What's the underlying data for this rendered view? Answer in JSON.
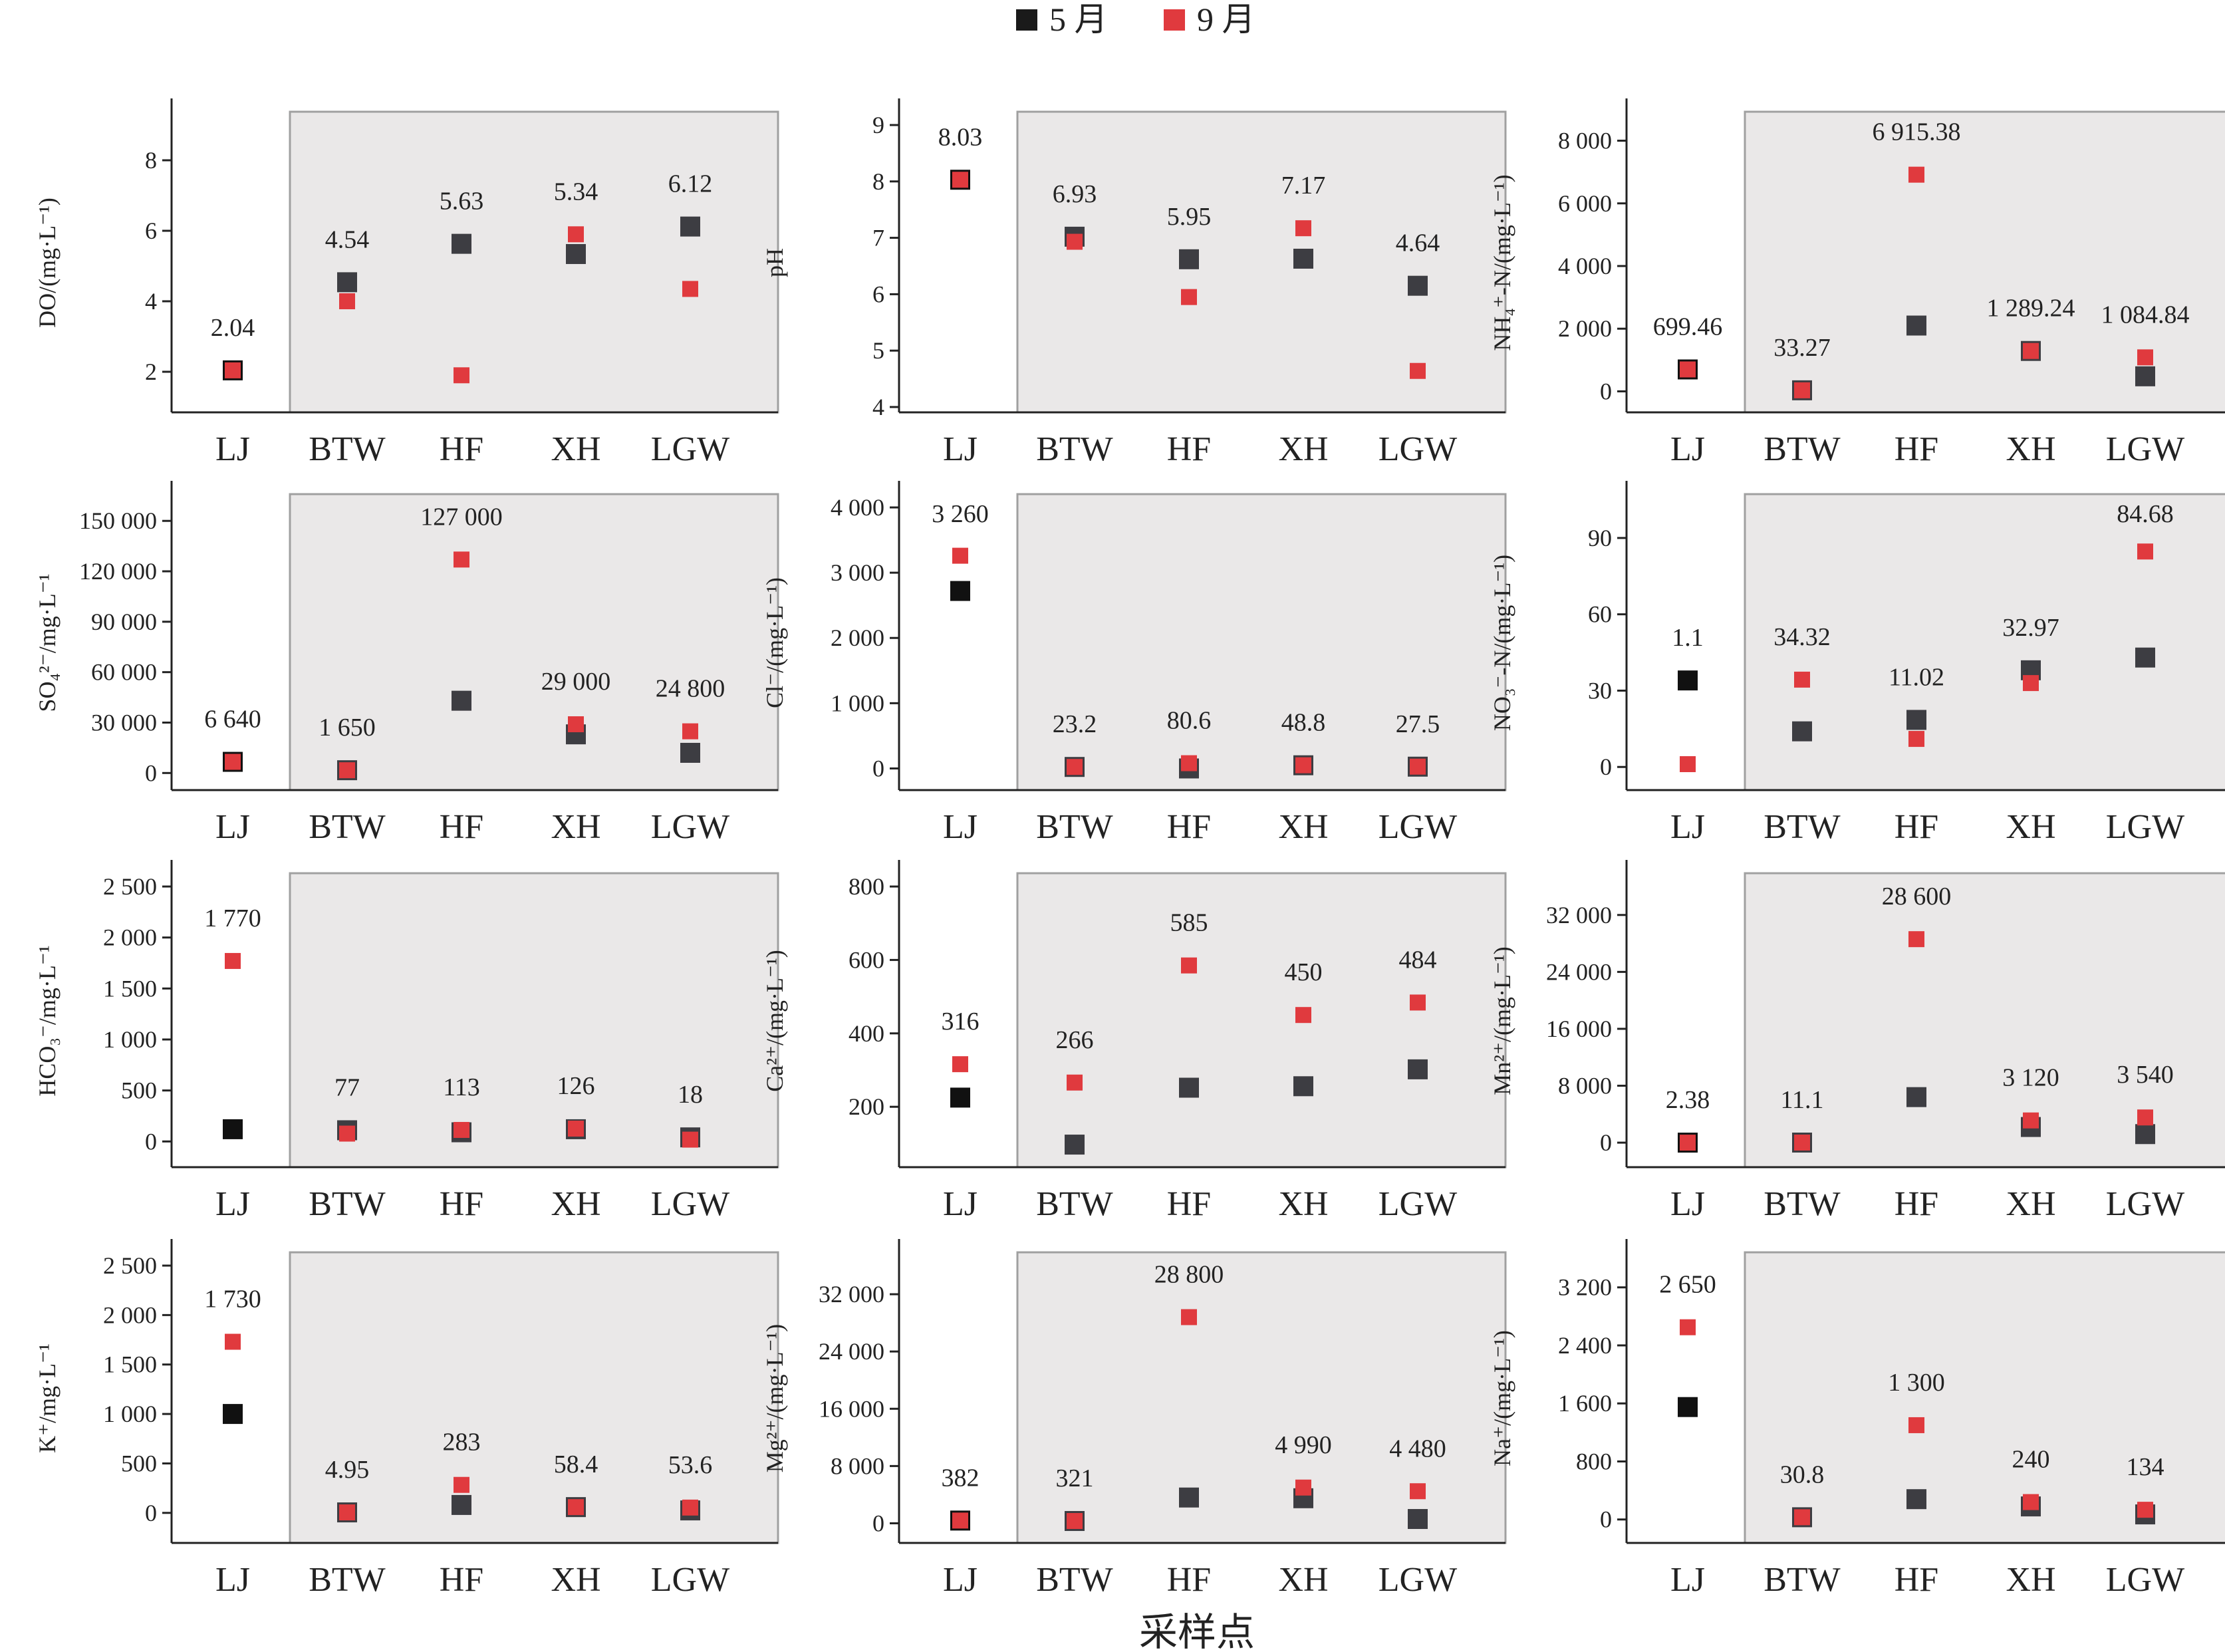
{
  "legend": {
    "position": "top-center",
    "items": [
      {
        "label": "5 月",
        "color": "#1a1a1a"
      },
      {
        "label": "9 月",
        "color": "#e03a3e"
      }
    ]
  },
  "shared_xlabel": "采样点",
  "colors": {
    "may_landfill": "#111111",
    "may_other": "#3d3d42",
    "sep": "#e03a3e",
    "shade": "#eae8e8",
    "shade_border": "#a0a0a0"
  },
  "chart_data": [
    {
      "id": "do",
      "type": "scatter",
      "ylabel": "DO/(mg·L⁻¹)",
      "categories": [
        "LJ",
        "BTW",
        "HF",
        "XH",
        "LGW"
      ],
      "ylim": [
        1,
        9
      ],
      "yticks": [
        2,
        4,
        6,
        8
      ],
      "ytick_labels": [
        "2",
        "4",
        "6",
        "8"
      ],
      "series": [
        {
          "name": "5 月",
          "values": [
            2.04,
            4.54,
            5.63,
            5.34,
            6.12
          ]
        },
        {
          "name": "9 月",
          "values": [
            2.04,
            4.0,
            1.9,
            5.9,
            4.35
          ]
        }
      ],
      "labels": [
        "2.04",
        "4.54",
        "5.63",
        "5.34",
        "6.12"
      ]
    },
    {
      "id": "ph",
      "type": "scatter",
      "ylabel": "pH",
      "categories": [
        "LJ",
        "BTW",
        "HF",
        "XH",
        "LGW"
      ],
      "ylim": [
        4,
        9
      ],
      "yticks": [
        4,
        5,
        6,
        7,
        8,
        9
      ],
      "ytick_labels": [
        "4",
        "5",
        "6",
        "7",
        "8",
        "9"
      ],
      "series": [
        {
          "name": "5 月",
          "values": [
            8.03,
            7.02,
            6.62,
            6.63,
            6.15
          ]
        },
        {
          "name": "9 月",
          "values": [
            8.03,
            6.93,
            5.95,
            7.17,
            4.64
          ]
        }
      ],
      "labels": [
        "8.03",
        "6.93",
        "5.95",
        "7.17",
        "4.64"
      ]
    },
    {
      "id": "nh4",
      "type": "scatter",
      "ylabel": "NH₄⁺-N/(mg·L⁻¹)",
      "categories": [
        "LJ",
        "BTW",
        "HF",
        "XH",
        "LGW"
      ],
      "ylim": [
        -500,
        8500
      ],
      "yticks": [
        0,
        2000,
        4000,
        6000,
        8000
      ],
      "ytick_labels": [
        "0",
        "2 000",
        "4 000",
        "6 000",
        "8 000"
      ],
      "series": [
        {
          "name": "5 月",
          "values": [
            699.46,
            33.27,
            2100,
            1289.24,
            480
          ]
        },
        {
          "name": "9 月",
          "values": [
            699.46,
            33.27,
            6915.38,
            1289.24,
            1084.84
          ]
        }
      ],
      "labels": [
        "699.46",
        "33.27",
        "6 915.38",
        "1 289.24",
        "1 084.84"
      ]
    },
    {
      "id": "so4",
      "type": "scatter",
      "ylabel": "SO₄²⁻/mg·L⁻¹",
      "categories": [
        "LJ",
        "BTW",
        "HF",
        "XH",
        "LGW"
      ],
      "ylim": [
        -7000,
        158000
      ],
      "yticks": [
        0,
        30000,
        60000,
        90000,
        120000,
        150000
      ],
      "ytick_labels": [
        "0",
        "30 000",
        "60 000",
        "90 000",
        "120 000",
        "150 000"
      ],
      "series": [
        {
          "name": "5 月",
          "values": [
            6640,
            1650,
            43000,
            23000,
            12000
          ]
        },
        {
          "name": "9 月",
          "values": [
            6640,
            1650,
            127000,
            29000,
            24800
          ]
        }
      ],
      "labels": [
        "6 640",
        "1 650",
        "127 000",
        "29 000",
        "24 800"
      ]
    },
    {
      "id": "cl",
      "type": "scatter",
      "ylabel": "Cl⁻/(mg·L⁻¹)",
      "categories": [
        "LJ",
        "BTW",
        "HF",
        "XH",
        "LGW"
      ],
      "ylim": [
        -250,
        4000
      ],
      "yticks": [
        0,
        1000,
        2000,
        3000,
        4000
      ],
      "ytick_labels": [
        "0",
        "1 000",
        "2 000",
        "3 000",
        "4 000"
      ],
      "series": [
        {
          "name": "5 月",
          "values": [
            2720,
            23.2,
            0,
            48.8,
            27.5
          ]
        },
        {
          "name": "9 月",
          "values": [
            3260,
            23.2,
            80.6,
            48.8,
            27.5
          ]
        }
      ],
      "labels": [
        "3 260",
        "23.2",
        "80.6",
        "48.8",
        "27.5"
      ]
    },
    {
      "id": "no3",
      "type": "scatter",
      "ylabel": "NO₃⁻-N/(mg·L⁻¹)",
      "categories": [
        "LJ",
        "BTW",
        "HF",
        "XH",
        "LGW"
      ],
      "ylim": [
        -7,
        102
      ],
      "yticks": [
        0,
        30,
        60,
        90
      ],
      "ytick_labels": [
        "0",
        "30",
        "60",
        "90"
      ],
      "series": [
        {
          "name": "5 月",
          "values": [
            34.0,
            14.0,
            18.5,
            38.0,
            43.0
          ]
        },
        {
          "name": "9 月",
          "values": [
            1.1,
            34.32,
            11.02,
            32.97,
            84.68
          ]
        }
      ],
      "labels": [
        "1.1",
        "34.32",
        "11.02",
        "32.97",
        "84.68"
      ]
    },
    {
      "id": "hco3",
      "type": "scatter",
      "ylabel": "HCO₃⁻/mg·L⁻¹",
      "categories": [
        "LJ",
        "BTW",
        "HF",
        "XH",
        "LGW"
      ],
      "ylim": [
        -200,
        2500
      ],
      "yticks": [
        0,
        500,
        1000,
        1500,
        2000,
        2500
      ],
      "ytick_labels": [
        "0",
        "500",
        "1 000",
        "1 500",
        "2 000",
        "2 500"
      ],
      "series": [
        {
          "name": "5 月",
          "values": [
            120,
            110,
            90,
            120,
            40
          ]
        },
        {
          "name": "9 月",
          "values": [
            1770,
            77,
            113,
            126,
            18
          ]
        }
      ],
      "labels": [
        "1 770",
        "77",
        "113",
        "126",
        "18"
      ]
    },
    {
      "id": "ca",
      "type": "scatter",
      "ylabel": "Ca²⁺/(mg·L⁻¹)",
      "categories": [
        "LJ",
        "BTW",
        "HF",
        "XH",
        "LGW"
      ],
      "ylim": [
        50,
        800
      ],
      "yticks": [
        200,
        400,
        600,
        800
      ],
      "ytick_labels": [
        "200",
        "400",
        "600",
        "800"
      ],
      "series": [
        {
          "name": "5 月",
          "values": [
            225,
            97,
            252,
            256,
            302
          ]
        },
        {
          "name": "9 月",
          "values": [
            316,
            266,
            585,
            450,
            484
          ]
        }
      ],
      "labels": [
        "316",
        "266",
        "585",
        "450",
        "484"
      ]
    },
    {
      "id": "mn",
      "type": "scatter",
      "ylabel": "Mn²⁺/(mg·L⁻¹)",
      "categories": [
        "LJ",
        "BTW",
        "HF",
        "XH",
        "LGW"
      ],
      "ylim": [
        -2700,
        36000
      ],
      "yticks": [
        0,
        8000,
        16000,
        24000,
        32000
      ],
      "ytick_labels": [
        "0",
        "8 000",
        "16 000",
        "24 000",
        "32 000"
      ],
      "series": [
        {
          "name": "5 月",
          "values": [
            2.38,
            11.1,
            6400,
            2200,
            1200
          ]
        },
        {
          "name": "9 月",
          "values": [
            2.38,
            11.1,
            28600,
            3120,
            3540
          ]
        }
      ],
      "labels": [
        "2.38",
        "11.1",
        "28 600",
        "3 120",
        "3 540"
      ]
    },
    {
      "id": "k",
      "type": "scatter",
      "ylabel": "K⁺/mg·L⁻¹",
      "categories": [
        "LJ",
        "BTW",
        "HF",
        "XH",
        "LGW"
      ],
      "ylim": [
        -250,
        2500
      ],
      "yticks": [
        0,
        500,
        1000,
        1500,
        2000,
        2500
      ],
      "ytick_labels": [
        "0",
        "500",
        "1 000",
        "1 500",
        "2 000",
        "2 500"
      ],
      "series": [
        {
          "name": "5 月",
          "values": [
            1000,
            4.95,
            80,
            58.4,
            25
          ]
        },
        {
          "name": "9 月",
          "values": [
            1730,
            4.95,
            283,
            58.4,
            53.6
          ]
        }
      ],
      "labels": [
        "1 730",
        "4.95",
        "283",
        "58.4",
        "53.6"
      ]
    },
    {
      "id": "mg",
      "type": "scatter",
      "ylabel": "Mg²⁺/(mg·L⁻¹)",
      "categories": [
        "LJ",
        "BTW",
        "HF",
        "XH",
        "LGW"
      ],
      "ylim": [
        -2000,
        36000
      ],
      "yticks": [
        0,
        8000,
        16000,
        24000,
        32000
      ],
      "ytick_labels": [
        "0",
        "8 000",
        "16 000",
        "24 000",
        "32 000"
      ],
      "series": [
        {
          "name": "5 月",
          "values": [
            382,
            321,
            3600,
            3500,
            600
          ]
        },
        {
          "name": "9 月",
          "values": [
            382,
            321,
            28800,
            4990,
            4480
          ]
        }
      ],
      "labels": [
        "382",
        "321",
        "28 800",
        "4 990",
        "4 480"
      ]
    },
    {
      "id": "na",
      "type": "scatter",
      "ylabel": "Na⁺/(mg·L⁻¹)",
      "categories": [
        "LJ",
        "BTW",
        "HF",
        "XH",
        "LGW"
      ],
      "ylim": [
        -250,
        3500
      ],
      "yticks": [
        0,
        800,
        1600,
        2400,
        3200
      ],
      "ytick_labels": [
        "0",
        "800",
        "1 600",
        "2 400",
        "3 200"
      ],
      "series": [
        {
          "name": "5 月",
          "values": [
            1550,
            30.8,
            280,
            180,
            70
          ]
        },
        {
          "name": "9 月",
          "values": [
            2650,
            30.8,
            1300,
            240,
            134
          ]
        }
      ],
      "labels": [
        "2 650",
        "30.8",
        "1 300",
        "240",
        "134"
      ]
    }
  ]
}
